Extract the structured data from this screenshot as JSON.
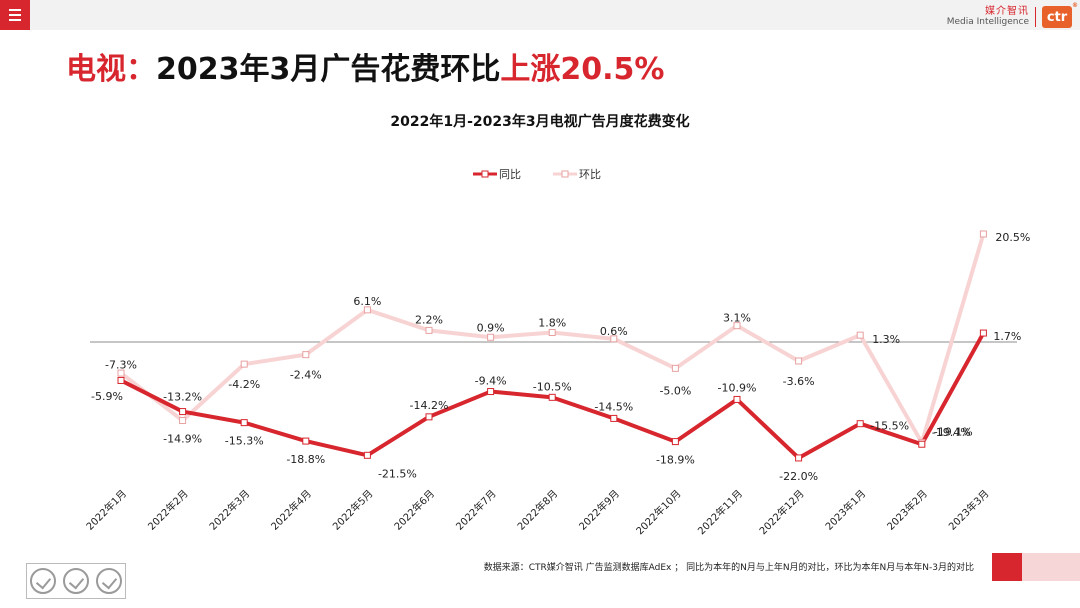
{
  "header": {
    "brand_cn": "媒介智讯",
    "brand_en": "Media Intelligence",
    "logo_text": "ctr"
  },
  "headline": {
    "part1": "电视：",
    "part2": "2023年3月广告花费环比",
    "part3": "上涨20.5%"
  },
  "footer": {
    "source": "数据来源：CTR媒介智讯 广告监测数据库AdEx ； 同比为本年的N月与上年N月的对比，环比为本年N月与本年N-3月的对比"
  },
  "colors": {
    "yoy": "#d7262d",
    "mom": "#f8d3d3",
    "accent": "#d7262d"
  },
  "chart_data": {
    "type": "line",
    "title": "2022年1月-2023年3月电视广告月度花费变化",
    "legend_position": "top-center",
    "categories": [
      "2022年1月",
      "2022年2月",
      "2022年3月",
      "2022年4月",
      "2022年5月",
      "2022年6月",
      "2022年7月",
      "2022年8月",
      "2022年9月",
      "2022年10月",
      "2022年11月",
      "2022年12月",
      "2023年1月",
      "2023年2月",
      "2023年3月"
    ],
    "series": [
      {
        "name": "同比",
        "values": [
          -7.3,
          -13.2,
          -15.3,
          -18.8,
          -21.5,
          -14.2,
          -9.4,
          -10.5,
          -14.5,
          -18.9,
          -10.9,
          -22.0,
          -15.5,
          -19.4,
          1.7
        ]
      },
      {
        "name": "环比",
        "values": [
          -5.9,
          -14.9,
          -4.2,
          -2.4,
          6.1,
          2.2,
          0.9,
          1.8,
          0.6,
          -5.0,
          3.1,
          -3.6,
          1.3,
          -19.1,
          20.5
        ]
      }
    ],
    "labels": {
      "同比": [
        "-7.3%",
        "-13.2%",
        "-15.3%",
        "-18.8%",
        "-21.5%",
        "-14.2%",
        "-9.4%",
        "-10.5%",
        "-14.5%",
        "-18.9%",
        "-10.9%",
        "-22.0%",
        "-15.5%",
        "-19.4%",
        "1.7%"
      ],
      "环比": [
        "-5.9%",
        "-14.9%",
        "-4.2%",
        "-2.4%",
        "6.1%",
        "2.2%",
        "0.9%",
        "1.8%",
        "0.6%",
        "-5.0%",
        "3.1%",
        "-3.6%",
        "1.3%",
        "-19.1%",
        "20.5%"
      ]
    },
    "grid": false
  }
}
